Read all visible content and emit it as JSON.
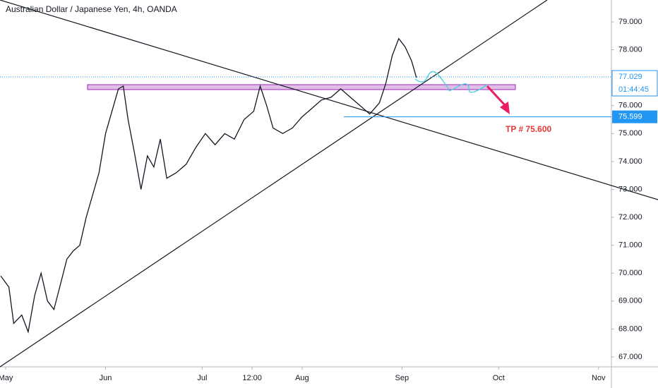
{
  "chart_data": {
    "type": "line",
    "title": "Australian Dollar / Japanese Yen, 4h, OANDA",
    "x": [
      -1.5,
      1,
      2.5,
      5,
      7,
      9,
      11,
      13,
      15,
      17,
      19,
      21,
      23,
      25,
      27,
      29,
      31,
      33,
      35,
      36.5,
      38,
      40,
      42,
      44,
      46,
      48,
      50,
      53,
      56,
      59,
      62,
      65,
      68,
      71,
      74,
      77,
      79,
      81,
      83,
      86,
      89,
      92,
      95,
      98,
      101,
      104,
      107,
      110,
      113,
      116,
      118,
      120,
      122,
      124,
      126,
      127.5
    ],
    "series": [
      {
        "color": "#131722",
        "values": [
          69.9,
          69.5,
          68.2,
          68.5,
          67.9,
          69.2,
          70.0,
          69.0,
          68.7,
          69.6,
          70.5,
          70.8,
          71.0,
          72.0,
          72.8,
          73.6,
          75.0,
          75.8,
          76.6,
          76.7,
          75.5,
          74.3,
          73.0,
          74.2,
          73.8,
          74.8,
          73.4,
          73.6,
          73.9,
          74.5,
          75.0,
          74.6,
          75.0,
          74.8,
          75.5,
          75.8,
          76.7,
          76.0,
          75.2,
          75.0,
          75.2,
          75.6,
          75.9,
          76.2,
          76.3,
          76.6,
          76.3,
          76.0,
          75.7,
          76.1,
          76.8,
          77.8,
          78.4,
          78.1,
          77.6,
          77.0
        ]
      }
    ],
    "xlim": [
      -1.75,
      188
    ],
    "ylim": [
      66.646,
      79.783
    ],
    "xticks": [
      {
        "value": 0,
        "label": "May"
      },
      {
        "value": 31,
        "label": "Jun"
      },
      {
        "value": 61,
        "label": "Jul"
      },
      {
        "value": 76.5,
        "label": "12:00"
      },
      {
        "value": 92,
        "label": "Aug"
      },
      {
        "value": 123,
        "label": "Sep"
      },
      {
        "value": 153,
        "label": "Oct"
      },
      {
        "value": 184,
        "label": "Nov"
      }
    ],
    "yticks": [
      {
        "value": 67,
        "label": "67.000"
      },
      {
        "value": 68,
        "label": "68.000"
      },
      {
        "value": 69,
        "label": "69.000"
      },
      {
        "value": 70,
        "label": "70.000"
      },
      {
        "value": 71,
        "label": "71.000"
      },
      {
        "value": 72,
        "label": "72.000"
      },
      {
        "value": 73,
        "label": "73.000"
      },
      {
        "value": 74,
        "label": "74.000"
      },
      {
        "value": 75,
        "label": "75.000"
      },
      {
        "value": 76,
        "label": "76.000"
      },
      {
        "value": 77,
        "label": "77.000"
      },
      {
        "value": 78,
        "label": "78.000"
      },
      {
        "value": 79,
        "label": "79.000"
      }
    ],
    "current_price": 77.029,
    "countdown": "01:44:45",
    "target_price": 75.599,
    "annotation": "TP # 75.600"
  }
}
